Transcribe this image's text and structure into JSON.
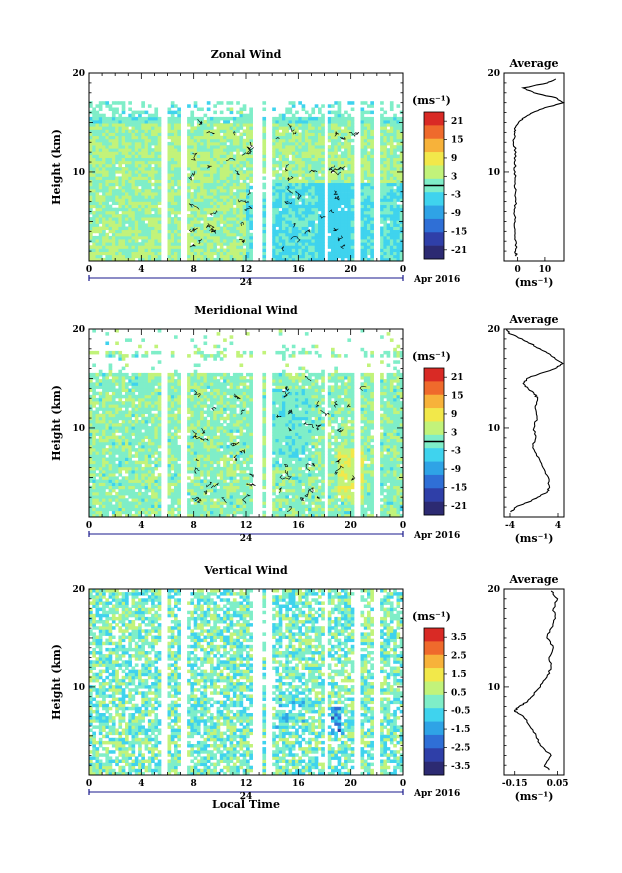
{
  "chart_data": [
    {
      "type": "heatmap",
      "title": "Zonal Wind",
      "ylabel": "Height (km)",
      "ylim": [
        1,
        20
      ],
      "yticks": [
        "10",
        "20"
      ],
      "xlim": [
        0,
        24
      ],
      "xticks": [
        "0",
        "4",
        "8",
        "12",
        "16",
        "20",
        "0"
      ],
      "date_mark": "24",
      "date_label": "Apr 2016",
      "colorbar": {
        "unit": "(ms⁻¹)",
        "range": [
          -24,
          24
        ],
        "ticks": [
          "21",
          "15",
          "9",
          "3",
          "-3",
          "-9",
          "-15",
          "-21"
        ],
        "contour_level": 0
      },
      "profile": {
        "title": "Average",
        "unit": "(ms⁻¹)",
        "xlim": [
          -5,
          17
        ],
        "xticks": [
          "0",
          "10"
        ],
        "yticks": [
          "10",
          "20"
        ],
        "height_km": [
          1.5,
          2,
          3,
          4,
          5,
          6,
          7,
          8,
          9,
          10,
          11,
          12,
          13,
          14,
          14.5,
          15,
          15.5,
          16,
          16.5,
          17,
          17.5,
          18,
          18.5,
          19,
          19.4
        ],
        "value_ms": [
          -0.5,
          -0.8,
          -0.6,
          -1.0,
          -0.9,
          -1.2,
          -0.8,
          -0.7,
          -1.0,
          -0.9,
          -1.2,
          -0.6,
          -1.5,
          -1.0,
          -0.8,
          0.3,
          2.5,
          5.5,
          10,
          16.8,
          14,
          6,
          2,
          11,
          14
        ]
      }
    },
    {
      "type": "heatmap",
      "title": "Meridional Wind",
      "ylabel": "Height (km)",
      "ylim": [
        1,
        20
      ],
      "yticks": [
        "10",
        "20"
      ],
      "xlim": [
        0,
        24
      ],
      "xticks": [
        "0",
        "4",
        "8",
        "12",
        "16",
        "20",
        "0"
      ],
      "date_mark": "24",
      "date_label": "Apr 2016",
      "colorbar": {
        "unit": "(ms⁻¹)",
        "range": [
          -24,
          24
        ],
        "ticks": [
          "21",
          "15",
          "9",
          "3",
          "-3",
          "-9",
          "-15",
          "-21"
        ],
        "contour_level": 0
      },
      "profile": {
        "title": "Average",
        "unit": "(ms⁻¹)",
        "xlim": [
          -5,
          5
        ],
        "xticks": [
          "-4",
          "4"
        ],
        "yticks": [
          "10",
          "20"
        ],
        "height_km": [
          1.5,
          2,
          2.5,
          3,
          3.5,
          4,
          5,
          6,
          7,
          8,
          9,
          10,
          11,
          12,
          13,
          13.5,
          14,
          14.5,
          15,
          15.5,
          16,
          16.5,
          17,
          17.5,
          18,
          18.5,
          19,
          19.5,
          20
        ],
        "value_ms": [
          -3.9,
          -3.0,
          -1.0,
          0.6,
          2.2,
          2.6,
          2.4,
          1.5,
          0.8,
          -0.2,
          0.3,
          0.0,
          0.5,
          0.2,
          0.6,
          0.0,
          -1.0,
          -1.8,
          -1.2,
          1.0,
          3.5,
          4.8,
          3.5,
          2.5,
          1.0,
          -0.5,
          -2.0,
          -4.0,
          -4.5
        ]
      }
    },
    {
      "type": "heatmap",
      "title": "Vertical Wind",
      "ylabel": "Height (km)",
      "xlabel": "Local Time",
      "ylim": [
        1,
        20
      ],
      "yticks": [
        "10",
        "20"
      ],
      "xlim": [
        0,
        24
      ],
      "xticks": [
        "0",
        "4",
        "8",
        "12",
        "16",
        "20",
        "0"
      ],
      "date_mark": "24",
      "date_label": "Apr 2016",
      "colorbar": {
        "unit": "(ms⁻¹)",
        "range": [
          -4,
          4
        ],
        "ticks": [
          "3.5",
          "2.5",
          "1.5",
          "0.5",
          "-0.5",
          "-1.5",
          "-2.5",
          "-3.5"
        ]
      },
      "profile": {
        "title": "Average",
        "unit": "(ms⁻¹)",
        "xlim": [
          -0.2,
          0.08
        ],
        "xticks": [
          "-0.15",
          "0.05"
        ],
        "yticks": [
          "10",
          "20"
        ],
        "height_km": [
          1.5,
          2,
          3,
          4,
          5,
          6,
          7,
          7.5,
          8,
          8.5,
          9,
          10,
          11,
          12,
          13,
          14,
          15,
          16,
          17,
          18,
          19,
          19.8
        ],
        "value_ms": [
          0.01,
          -0.01,
          0.02,
          -0.03,
          -0.05,
          -0.08,
          -0.11,
          -0.15,
          -0.13,
          -0.09,
          -0.07,
          -0.03,
          0.0,
          0.02,
          0.01,
          0.03,
          0.0,
          0.02,
          0.04,
          0.03,
          0.05,
          0.02
        ]
      }
    }
  ]
}
